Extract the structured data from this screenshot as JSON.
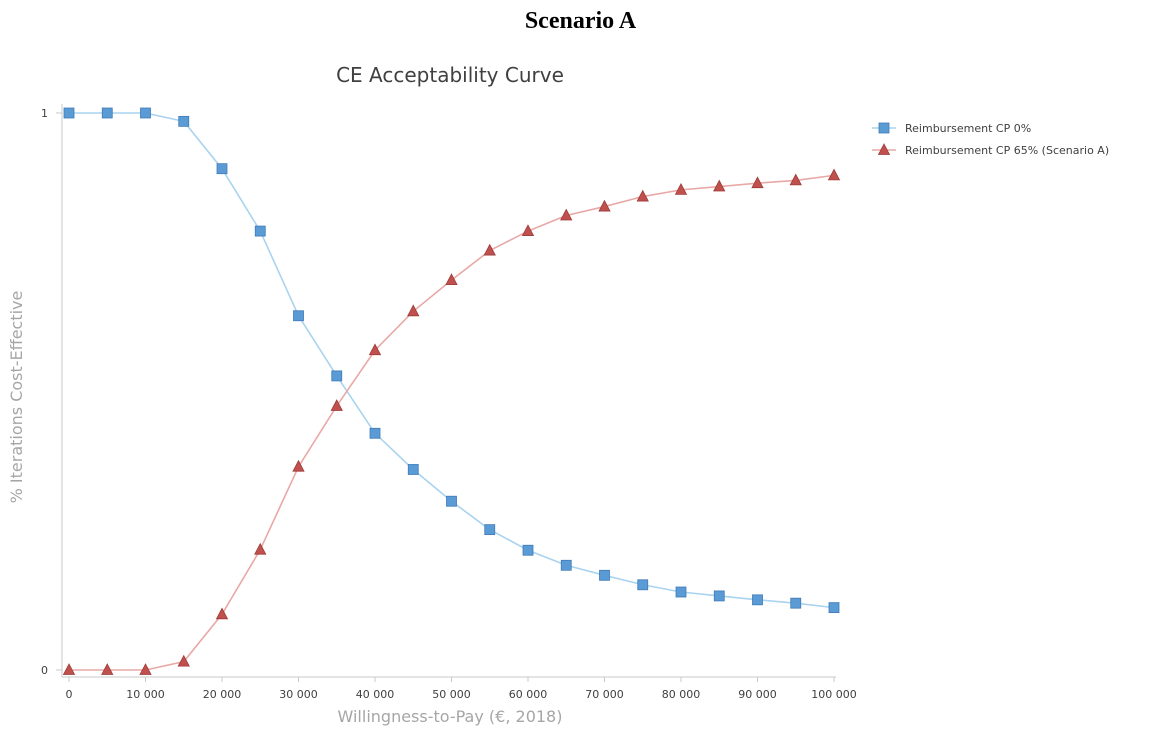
{
  "page": {
    "heading": "Scenario A"
  },
  "chart_data": {
    "type": "line",
    "title": "CE Acceptability Curve",
    "xlabel": "Willingness-to-Pay (€, 2018)",
    "ylabel": "% Iterations Cost-Effective",
    "x": [
      0,
      5000,
      10000,
      15000,
      20000,
      25000,
      30000,
      35000,
      40000,
      45000,
      50000,
      55000,
      60000,
      65000,
      70000,
      75000,
      80000,
      85000,
      90000,
      95000,
      100000
    ],
    "xticks": [
      0,
      10000,
      20000,
      30000,
      40000,
      50000,
      60000,
      70000,
      80000,
      90000,
      100000
    ],
    "xtick_labels": [
      "0",
      "10 000",
      "20 000",
      "30 000",
      "40 000",
      "50 000",
      "60 000",
      "70 000",
      "80 000",
      "90 000",
      "100 000"
    ],
    "yticks": [
      0,
      1
    ],
    "ytick_labels": [
      "0",
      "1"
    ],
    "xlim": [
      0,
      100000
    ],
    "ylim": [
      0,
      1
    ],
    "grid": false,
    "legend_position": "top-right",
    "series": [
      {
        "name": "Reimbursement CP 0%",
        "color": "#5b9bd5",
        "line_color": "#a9d3ef",
        "marker": "square",
        "values": [
          1.0,
          1.0,
          1.0,
          0.985,
          0.9,
          0.788,
          0.636,
          0.528,
          0.425,
          0.36,
          0.303,
          0.252,
          0.215,
          0.188,
          0.17,
          0.153,
          0.14,
          0.133,
          0.126,
          0.12,
          0.112
        ]
      },
      {
        "name": "Reimbursement CP 65% (Scenario A)",
        "color": "#c0504d",
        "line_color": "#e8a8a6",
        "marker": "triangle",
        "values": [
          0.0,
          0.0,
          0.0,
          0.015,
          0.1,
          0.216,
          0.365,
          0.474,
          0.574,
          0.644,
          0.7,
          0.753,
          0.788,
          0.816,
          0.832,
          0.85,
          0.862,
          0.868,
          0.874,
          0.879,
          0.888
        ]
      }
    ]
  }
}
